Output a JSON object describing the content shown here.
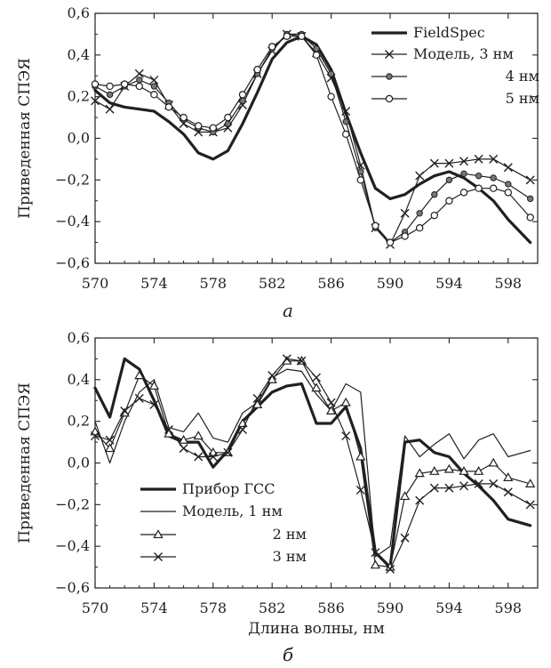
{
  "chart_data": [
    {
      "type": "line",
      "panel_label": "а",
      "xlabel": "",
      "ylabel": "Приведенная СПЭЯ",
      "xlim": [
        570,
        600
      ],
      "ylim": [
        -0.6,
        0.6
      ],
      "x_ticks": [
        "570",
        "574",
        "578",
        "582",
        "586",
        "590",
        "594",
        "598"
      ],
      "x_tick_values": [
        570,
        574,
        578,
        582,
        586,
        590,
        594,
        598
      ],
      "y_ticks": [
        "0,6",
        "0,4",
        "0,2",
        "0,0",
        "−0,2",
        "−0,4",
        "−0,6"
      ],
      "y_tick_values": [
        0.6,
        0.4,
        0.2,
        0.0,
        -0.2,
        -0.4,
        -0.6
      ],
      "legend_position": "top-right",
      "series": [
        {
          "name": "FieldSpec",
          "style": "thick",
          "marker": "none",
          "x": [
            570,
            571,
            572,
            573,
            574,
            575,
            576,
            577,
            578,
            579,
            580,
            581,
            582,
            583,
            584,
            585,
            586,
            587,
            588,
            589,
            590,
            591,
            592,
            593,
            594,
            595,
            596,
            597,
            598,
            599.5
          ],
          "y": [
            0.23,
            0.17,
            0.15,
            0.14,
            0.13,
            0.08,
            0.02,
            -0.07,
            -0.1,
            -0.06,
            0.07,
            0.22,
            0.38,
            0.46,
            0.49,
            0.45,
            0.33,
            0.12,
            -0.07,
            -0.24,
            -0.29,
            -0.27,
            -0.22,
            -0.18,
            -0.16,
            -0.19,
            -0.24,
            -0.3,
            -0.39,
            -0.5
          ]
        },
        {
          "name": "Модель, 3 нм",
          "style": "thin",
          "marker": "x",
          "x": [
            570,
            571,
            572,
            573,
            574,
            575,
            576,
            577,
            578,
            579,
            580,
            581,
            582,
            583,
            584,
            585,
            586,
            587,
            588,
            589,
            590,
            591,
            592,
            593,
            594,
            595,
            596,
            597,
            598,
            599.5
          ],
          "y": [
            0.18,
            0.14,
            0.25,
            0.31,
            0.28,
            0.16,
            0.07,
            0.03,
            0.03,
            0.05,
            0.16,
            0.31,
            0.42,
            0.5,
            0.49,
            0.41,
            0.29,
            0.13,
            -0.13,
            -0.43,
            -0.51,
            -0.36,
            -0.18,
            -0.12,
            -0.12,
            -0.11,
            -0.1,
            -0.1,
            -0.14,
            -0.2
          ]
        },
        {
          "name": "4 нм",
          "style": "thin",
          "marker": "star",
          "x": [
            570,
            571,
            572,
            573,
            574,
            575,
            576,
            577,
            578,
            579,
            580,
            581,
            582,
            583,
            584,
            585,
            586,
            587,
            588,
            589,
            590,
            591,
            592,
            593,
            594,
            595,
            596,
            597,
            598,
            599.5
          ],
          "y": [
            0.25,
            0.21,
            0.25,
            0.28,
            0.25,
            0.17,
            0.09,
            0.05,
            0.03,
            0.07,
            0.18,
            0.31,
            0.43,
            0.5,
            0.5,
            0.43,
            0.31,
            0.08,
            -0.16,
            -0.43,
            -0.5,
            -0.45,
            -0.36,
            -0.27,
            -0.2,
            -0.17,
            -0.18,
            -0.19,
            -0.22,
            -0.29
          ]
        },
        {
          "name": "5 нм",
          "style": "thin",
          "marker": "circle",
          "x": [
            570,
            571,
            572,
            573,
            574,
            575,
            576,
            577,
            578,
            579,
            580,
            581,
            582,
            583,
            584,
            585,
            586,
            587,
            588,
            589,
            590,
            591,
            592,
            593,
            594,
            595,
            596,
            597,
            598,
            599.5
          ],
          "y": [
            0.26,
            0.25,
            0.26,
            0.25,
            0.21,
            0.15,
            0.1,
            0.06,
            0.05,
            0.1,
            0.21,
            0.33,
            0.44,
            0.49,
            0.49,
            0.4,
            0.2,
            0.02,
            -0.2,
            -0.42,
            -0.5,
            -0.47,
            -0.43,
            -0.37,
            -0.3,
            -0.26,
            -0.24,
            -0.24,
            -0.26,
            -0.38
          ]
        }
      ]
    },
    {
      "type": "line",
      "panel_label": "б",
      "xlabel": "Длина волны, нм",
      "ylabel": "Приведенная СПЭЯ",
      "xlim": [
        570,
        600
      ],
      "ylim": [
        -0.6,
        0.6
      ],
      "x_ticks": [
        "570",
        "574",
        "578",
        "582",
        "586",
        "590",
        "594",
        "598"
      ],
      "x_tick_values": [
        570,
        574,
        578,
        582,
        586,
        590,
        594,
        598
      ],
      "y_ticks": [
        "0,6",
        "0,4",
        "0,2",
        "0,0",
        "−0,2",
        "−0,4",
        "−0,6"
      ],
      "y_tick_values": [
        0.6,
        0.4,
        0.2,
        0.0,
        -0.2,
        -0.4,
        -0.6
      ],
      "legend_position": "bottom-left",
      "series": [
        {
          "name": "Прибор ГСС",
          "style": "thick",
          "marker": "none",
          "x": [
            570,
            571,
            572,
            573,
            574,
            575,
            576,
            577,
            578,
            579,
            580,
            581,
            582,
            583,
            584,
            585,
            586,
            587,
            588,
            589,
            590,
            591,
            592,
            593,
            594,
            595,
            596,
            597,
            598,
            599.5
          ],
          "y": [
            0.36,
            0.22,
            0.5,
            0.45,
            0.3,
            0.13,
            0.1,
            0.1,
            -0.02,
            0.06,
            0.2,
            0.27,
            0.34,
            0.37,
            0.38,
            0.19,
            0.19,
            0.27,
            0.07,
            -0.43,
            -0.5,
            0.1,
            0.11,
            0.05,
            0.03,
            -0.05,
            -0.11,
            -0.18,
            -0.27,
            -0.3
          ]
        },
        {
          "name": "Модель, 1 нм",
          "style": "thin",
          "marker": "none",
          "x": [
            570,
            571,
            572,
            573,
            574,
            575,
            576,
            577,
            578,
            579,
            580,
            581,
            582,
            583,
            584,
            585,
            586,
            587,
            588,
            589,
            590,
            591,
            592,
            593,
            594,
            595,
            596,
            597,
            598,
            599.5
          ],
          "y": [
            0.2,
            0.0,
            0.2,
            0.34,
            0.4,
            0.17,
            0.15,
            0.24,
            0.12,
            0.1,
            0.24,
            0.29,
            0.41,
            0.45,
            0.44,
            0.33,
            0.25,
            0.38,
            0.34,
            -0.45,
            -0.4,
            0.13,
            0.03,
            0.09,
            0.14,
            0.02,
            0.11,
            0.14,
            0.03,
            0.06
          ]
        },
        {
          "name": "2 нм",
          "style": "thin",
          "marker": "triangle",
          "x": [
            570,
            571,
            572,
            573,
            574,
            575,
            576,
            577,
            578,
            579,
            580,
            581,
            582,
            583,
            584,
            585,
            586,
            587,
            588,
            589,
            590,
            591,
            592,
            593,
            594,
            595,
            596,
            597,
            598,
            599.5
          ],
          "y": [
            0.15,
            0.07,
            0.24,
            0.42,
            0.37,
            0.14,
            0.11,
            0.13,
            0.05,
            0.05,
            0.19,
            0.28,
            0.4,
            0.49,
            0.49,
            0.36,
            0.25,
            0.29,
            0.03,
            -0.49,
            -0.5,
            -0.16,
            -0.05,
            -0.04,
            -0.03,
            -0.04,
            -0.04,
            0.0,
            -0.07,
            -0.1
          ]
        },
        {
          "name": "3 нм",
          "style": "thin",
          "marker": "x",
          "x": [
            570,
            571,
            572,
            573,
            574,
            575,
            576,
            577,
            578,
            579,
            580,
            581,
            582,
            583,
            584,
            585,
            586,
            587,
            588,
            589,
            590,
            591,
            592,
            593,
            594,
            595,
            596,
            597,
            598,
            599.5
          ],
          "y": [
            0.13,
            0.11,
            0.25,
            0.31,
            0.28,
            0.16,
            0.07,
            0.03,
            0.03,
            0.05,
            0.16,
            0.31,
            0.42,
            0.5,
            0.49,
            0.41,
            0.29,
            0.13,
            -0.13,
            -0.43,
            -0.51,
            -0.36,
            -0.18,
            -0.12,
            -0.12,
            -0.11,
            -0.1,
            -0.1,
            -0.14,
            -0.2
          ]
        }
      ]
    }
  ]
}
